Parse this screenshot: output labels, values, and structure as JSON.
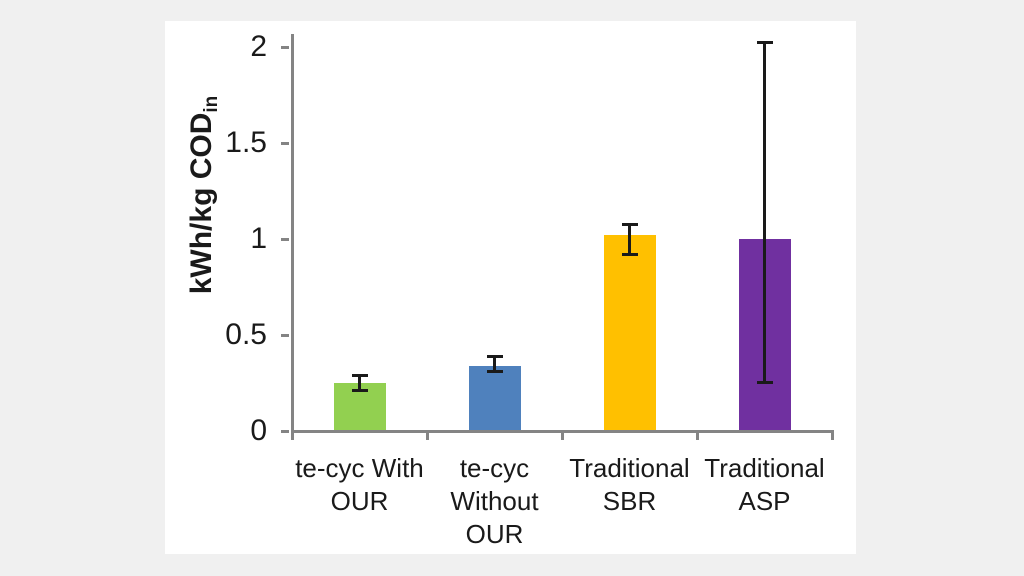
{
  "window": {
    "background_color": "#f0f0f0",
    "panel_background_color": "#ffffff"
  },
  "chart_data": {
    "type": "bar",
    "title": "",
    "xlabel": "",
    "ylabel": "kWh/kg COD",
    "ylabel_subscript": "in",
    "categories": [
      "te-cyc With OUR",
      "te-cyc Without OUR",
      "Traditional SBR",
      "Traditional ASP"
    ],
    "category_lines": [
      [
        "te-cyc With",
        "OUR"
      ],
      [
        "te-cyc",
        "Without",
        "OUR"
      ],
      [
        "Traditional",
        "SBR"
      ],
      [
        "Traditional",
        "ASP"
      ]
    ],
    "values": [
      0.25,
      0.34,
      1.02,
      1.0
    ],
    "error_low": [
      0.21,
      0.31,
      0.92,
      0.25
    ],
    "error_high": [
      0.29,
      0.39,
      1.08,
      2.03
    ],
    "bar_colors": [
      "#92d050",
      "#4f81bd",
      "#ffc000",
      "#7030a0"
    ],
    "yticks": [
      0,
      0.5,
      1,
      1.5,
      2
    ],
    "ytick_labels": [
      "0",
      "0.5",
      "1",
      "1.5",
      "2"
    ],
    "ylim": [
      0,
      2.07
    ],
    "grid": false,
    "legend_position": "none",
    "axis_color": "#848484",
    "error_bar_color": "#1a1a1a",
    "text_color": "#1a1a1a"
  }
}
